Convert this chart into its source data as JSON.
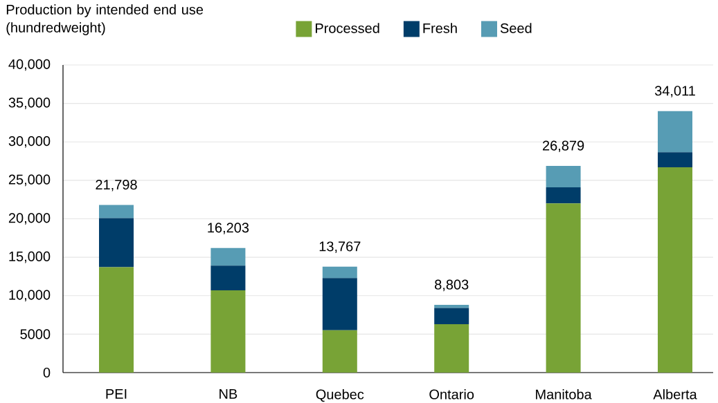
{
  "chart_data": {
    "type": "bar",
    "stacked": true,
    "ylabel": "Production by intended end use (hundredweight)",
    "categories": [
      "PEI",
      "NB",
      "Quebec",
      "Ontario",
      "Manitoba",
      "Alberta"
    ],
    "series": [
      {
        "name": "Processed",
        "color": "#78a336",
        "values": [
          13700,
          10700,
          5500,
          6300,
          22000,
          26700
        ]
      },
      {
        "name": "Fresh",
        "color": "#003d69",
        "values": [
          6400,
          3200,
          6800,
          2100,
          2100,
          1950
        ]
      },
      {
        "name": "Seed",
        "color": "#579cb4",
        "values": [
          1698,
          2303,
          1467,
          403,
          2779,
          5361
        ]
      }
    ],
    "totals": [
      "21,798",
      "16,203",
      "13,767",
      "8,803",
      "26,879",
      "34,011"
    ],
    "ylim": [
      0,
      40000
    ],
    "yticks": [
      0,
      5000,
      {
        "value": 10000,
        "label": "10,000"
      },
      {
        "value": 15000,
        "label": "15,000"
      },
      {
        "value": 20000,
        "label": "20,000"
      },
      {
        "value": 25000,
        "label": "25,000"
      },
      {
        "value": 30000,
        "label": "30,000"
      },
      {
        "value": 35000,
        "label": "35,000"
      },
      {
        "value": 40000,
        "label": "40,000"
      }
    ],
    "grid": "y",
    "legend": "top"
  }
}
